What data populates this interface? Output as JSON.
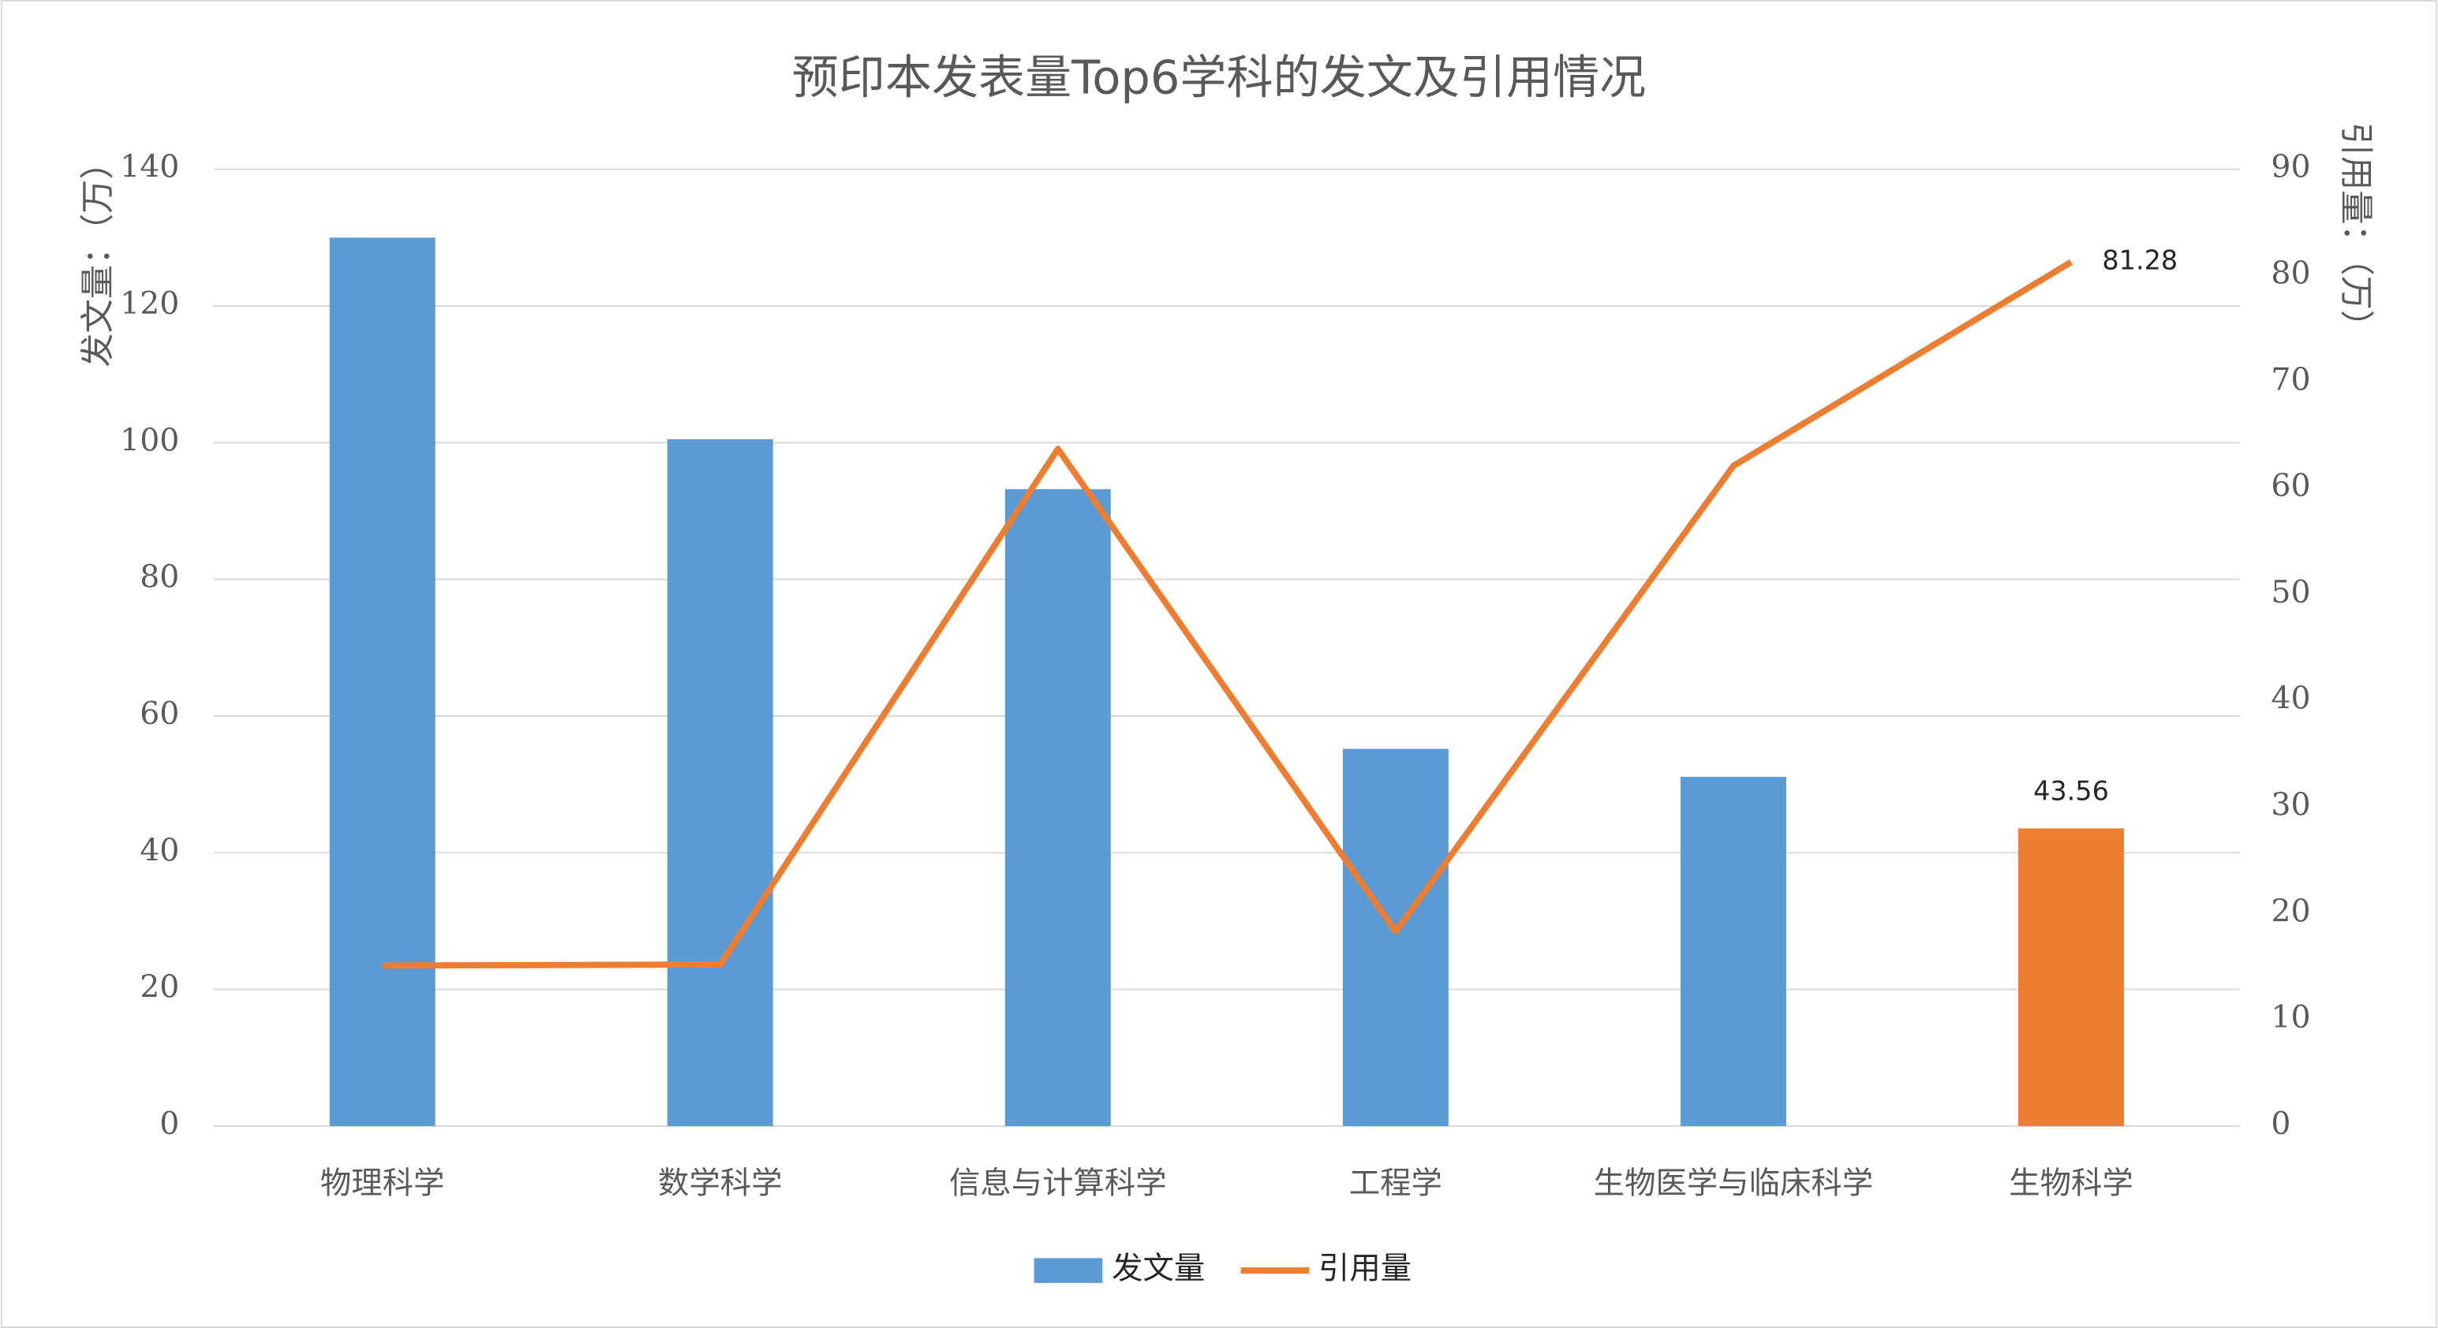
{
  "chart_data": {
    "type": "bar_line",
    "title": "预印本发表量Top6学科的发文及引用情况",
    "y_label": "发文量：（万）",
    "y2_label": "引用量：（万）",
    "categories": [
      "物理科学",
      "数学科学",
      "信息与计算科学",
      "工程学",
      "生物医学与临床科学",
      "生物科学"
    ],
    "series": [
      {
        "name": "发文量",
        "type": "bar",
        "color": "#5b9bd5",
        "values": [
          130.0,
          100.5,
          93.2,
          55.2,
          51.1,
          43.56
        ],
        "highlight_index": 5,
        "highlight_color": "#ed7d31",
        "label_index": 5
      },
      {
        "name": "引用量",
        "type": "line",
        "axis": "y2",
        "color": "#ed7d31",
        "values": [
          15.1,
          15.2,
          63.7,
          18.3,
          62.1,
          81.28
        ],
        "label_index": 5
      }
    ],
    "ylim": [
      0,
      140
    ],
    "yticks": [
      0,
      20,
      40,
      60,
      80,
      100,
      120,
      140
    ],
    "y2lim": [
      0,
      90
    ],
    "y2ticks": [
      0,
      10,
      20,
      30,
      40,
      50,
      60,
      70,
      80,
      90
    ],
    "grid": true,
    "legend": "bottom"
  }
}
